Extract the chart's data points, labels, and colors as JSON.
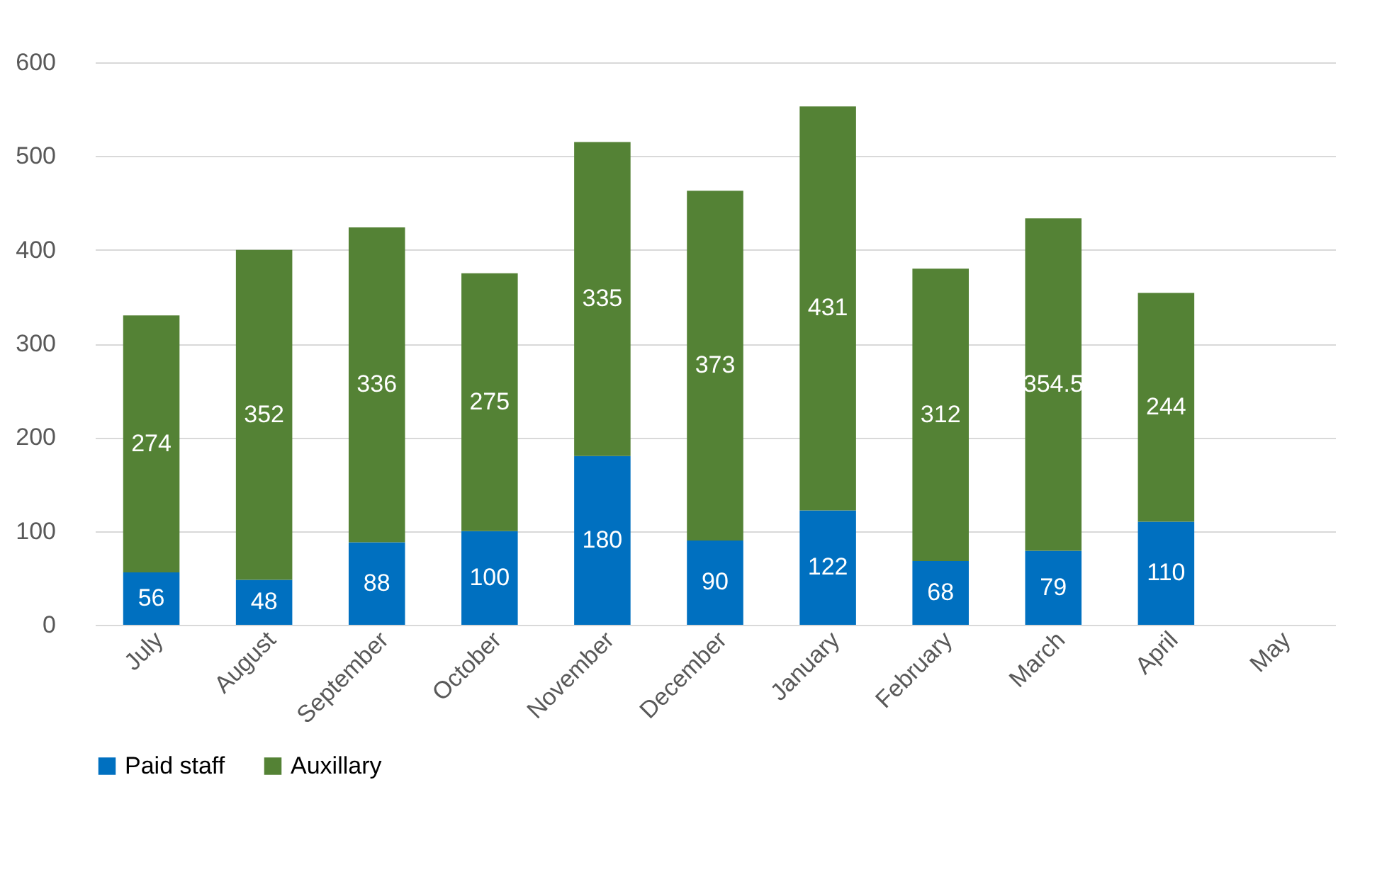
{
  "chart_data": {
    "type": "bar",
    "stacked": true,
    "categories": [
      "July",
      "August",
      "September",
      "October",
      "November",
      "December",
      "January",
      "February",
      "March",
      "April",
      "May"
    ],
    "series": [
      {
        "name": "Paid staff",
        "color": "#0070c0",
        "values": [
          56,
          48,
          88,
          100,
          180,
          90,
          122,
          68,
          79,
          110,
          null
        ]
      },
      {
        "name": "Auxillary",
        "color": "#548235",
        "values": [
          274,
          352,
          336,
          275,
          335,
          373,
          431,
          312,
          354.5,
          244,
          null
        ]
      }
    ],
    "ylim": [
      0,
      600
    ],
    "yticks": [
      0,
      100,
      200,
      300,
      400,
      500,
      600
    ],
    "grid": "y",
    "legend": "bottom",
    "data_labels": true
  }
}
